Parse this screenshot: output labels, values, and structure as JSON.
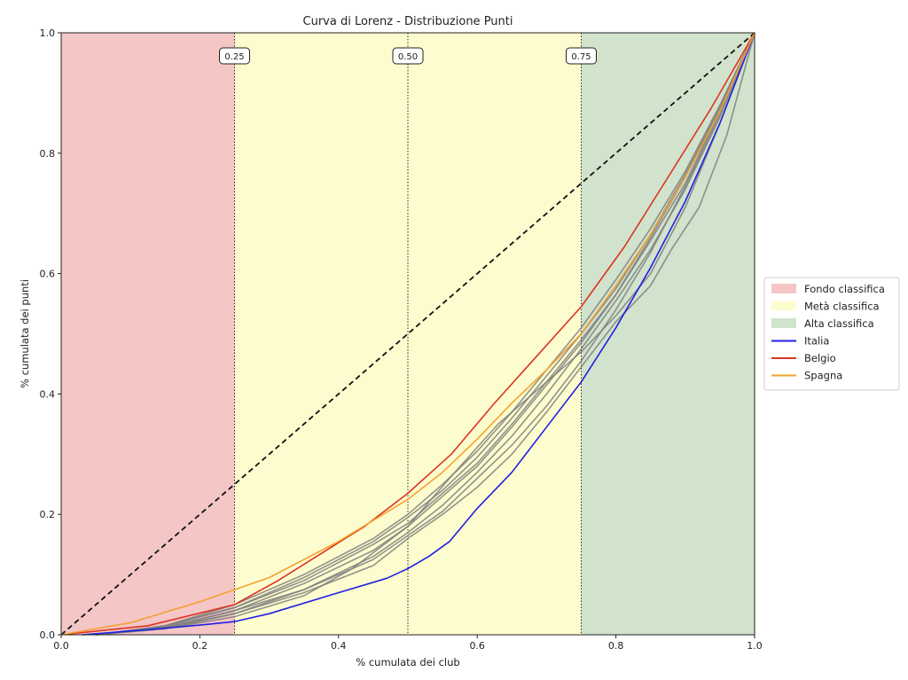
{
  "chart_data": {
    "type": "line",
    "title": "Curva di Lorenz - Distribuzione Punti",
    "xlabel": "% cumulata dei club",
    "ylabel": "% cumulata dei punti",
    "xlim": [
      0,
      1
    ],
    "ylim": [
      0,
      1
    ],
    "xticks": [
      "0.0",
      "0.2",
      "0.4",
      "0.6",
      "0.8",
      "1.0"
    ],
    "yticks": [
      "0.0",
      "0.2",
      "0.4",
      "0.6",
      "0.8",
      "1.0"
    ],
    "grid": false,
    "legend_position": "right",
    "bands": [
      {
        "name": "Fondo classifica",
        "from": 0.0,
        "to": 0.25,
        "color": "#f4c6c6"
      },
      {
        "name": "Metà classifica",
        "from": 0.25,
        "to": 0.75,
        "color": "#fdfccf"
      },
      {
        "name": "Alta classifica",
        "from": 0.75,
        "to": 1.0,
        "color": "#d1e3cc"
      }
    ],
    "vlines": [
      {
        "x": 0.25,
        "label": "0.25"
      },
      {
        "x": 0.5,
        "label": "0.50"
      },
      {
        "x": 0.75,
        "label": "0.75"
      }
    ],
    "equality_line": {
      "x": [
        0,
        1
      ],
      "y": [
        0,
        1
      ],
      "style": "dashed",
      "color": "#111111"
    },
    "series": [
      {
        "name": "Italia",
        "color": "#2020e0",
        "x": [
          0.03,
          0.12,
          0.2,
          0.25,
          0.3,
          0.4,
          0.47,
          0.5,
          0.53,
          0.56,
          0.6,
          0.65,
          0.7,
          0.75,
          0.8,
          0.85,
          0.9,
          0.95,
          1.0
        ],
        "y": [
          0.0,
          0.008,
          0.016,
          0.022,
          0.035,
          0.07,
          0.094,
          0.11,
          0.13,
          0.155,
          0.21,
          0.27,
          0.345,
          0.42,
          0.51,
          0.61,
          0.72,
          0.85,
          1.0
        ]
      },
      {
        "name": "Belgio",
        "color": "#dd3322",
        "x": [
          0.0,
          0.125,
          0.25,
          0.3125,
          0.375,
          0.4375,
          0.5,
          0.5625,
          0.625,
          0.6875,
          0.75,
          0.8125,
          0.875,
          0.9375,
          1.0
        ],
        "y": [
          0.0,
          0.015,
          0.05,
          0.09,
          0.135,
          0.18,
          0.235,
          0.3,
          0.385,
          0.465,
          0.545,
          0.645,
          0.76,
          0.875,
          1.0
        ]
      },
      {
        "name": "Spagna",
        "color": "#f4a130",
        "x": [
          0.0,
          0.1,
          0.2,
          0.25,
          0.3,
          0.4,
          0.5,
          0.55,
          0.6,
          0.65,
          0.7,
          0.75,
          0.8,
          0.85,
          0.9,
          0.95,
          1.0
        ],
        "y": [
          0.0,
          0.02,
          0.055,
          0.075,
          0.095,
          0.155,
          0.225,
          0.27,
          0.325,
          0.385,
          0.44,
          0.5,
          0.58,
          0.665,
          0.76,
          0.87,
          1.0
        ]
      },
      {
        "color": "#7f7f7f",
        "x": [
          0.05,
          0.15,
          0.25,
          0.35,
          0.45,
          0.5,
          0.55,
          0.6,
          0.65,
          0.7,
          0.75,
          0.8,
          0.85,
          0.9,
          0.95,
          1.0
        ],
        "y": [
          0.0,
          0.012,
          0.04,
          0.075,
          0.13,
          0.17,
          0.215,
          0.27,
          0.33,
          0.4,
          0.475,
          0.555,
          0.64,
          0.74,
          0.86,
          1.0
        ]
      },
      {
        "color": "#7f7f7f",
        "x": [
          0.05,
          0.15,
          0.25,
          0.35,
          0.42,
          0.5,
          0.56,
          0.63,
          0.7,
          0.75,
          0.8,
          0.85,
          0.9,
          0.95,
          1.0
        ],
        "y": [
          0.0,
          0.01,
          0.03,
          0.065,
          0.11,
          0.18,
          0.26,
          0.35,
          0.42,
          0.47,
          0.53,
          0.6,
          0.71,
          0.85,
          1.0
        ]
      },
      {
        "color": "#7f7f7f",
        "x": [
          0.05,
          0.15,
          0.25,
          0.35,
          0.45,
          0.5,
          0.55,
          0.6,
          0.65,
          0.7,
          0.75,
          0.8,
          0.85,
          0.88,
          0.92,
          0.96,
          1.0
        ],
        "y": [
          0.0,
          0.012,
          0.035,
          0.07,
          0.115,
          0.16,
          0.2,
          0.245,
          0.3,
          0.37,
          0.445,
          0.52,
          0.58,
          0.64,
          0.71,
          0.83,
          1.0
        ]
      },
      {
        "color": "#7f7f7f",
        "x": [
          0.05,
          0.15,
          0.25,
          0.35,
          0.45,
          0.5,
          0.55,
          0.6,
          0.65,
          0.7,
          0.75,
          0.8,
          0.85,
          0.9,
          0.95,
          1.0
        ],
        "y": [
          0.0,
          0.015,
          0.045,
          0.09,
          0.15,
          0.185,
          0.235,
          0.285,
          0.35,
          0.42,
          0.49,
          0.565,
          0.655,
          0.75,
          0.87,
          1.0
        ]
      },
      {
        "color": "#7f7f7f",
        "x": [
          0.05,
          0.15,
          0.25,
          0.35,
          0.45,
          0.5,
          0.55,
          0.6,
          0.65,
          0.7,
          0.75,
          0.8,
          0.85,
          0.9,
          0.95,
          1.0
        ],
        "y": [
          0.0,
          0.015,
          0.05,
          0.1,
          0.16,
          0.2,
          0.25,
          0.305,
          0.37,
          0.44,
          0.51,
          0.59,
          0.675,
          0.77,
          0.88,
          1.0
        ]
      },
      {
        "color": "#7f7f7f",
        "x": [
          0.05,
          0.15,
          0.25,
          0.35,
          0.45,
          0.5,
          0.55,
          0.6,
          0.65,
          0.7,
          0.75,
          0.8,
          0.85,
          0.9,
          0.95,
          1.0
        ],
        "y": [
          0.0,
          0.012,
          0.04,
          0.085,
          0.14,
          0.18,
          0.23,
          0.28,
          0.345,
          0.415,
          0.485,
          0.565,
          0.66,
          0.76,
          0.875,
          1.0
        ]
      },
      {
        "color": "#7f7f7f",
        "x": [
          0.05,
          0.15,
          0.25,
          0.35,
          0.45,
          0.5,
          0.55,
          0.6,
          0.65,
          0.7,
          0.75,
          0.8,
          0.85,
          0.9,
          0.95,
          1.0
        ],
        "y": [
          0.0,
          0.01,
          0.035,
          0.075,
          0.125,
          0.165,
          0.205,
          0.26,
          0.315,
          0.38,
          0.455,
          0.54,
          0.635,
          0.745,
          0.865,
          1.0
        ]
      },
      {
        "color": "#7f7f7f",
        "x": [
          0.05,
          0.15,
          0.25,
          0.35,
          0.45,
          0.5,
          0.55,
          0.6,
          0.65,
          0.7,
          0.75,
          0.8,
          0.85,
          0.9,
          0.95,
          1.0
        ],
        "y": [
          0.0,
          0.014,
          0.045,
          0.095,
          0.155,
          0.195,
          0.24,
          0.295,
          0.36,
          0.43,
          0.5,
          0.575,
          0.665,
          0.765,
          0.875,
          1.0
        ]
      }
    ]
  }
}
